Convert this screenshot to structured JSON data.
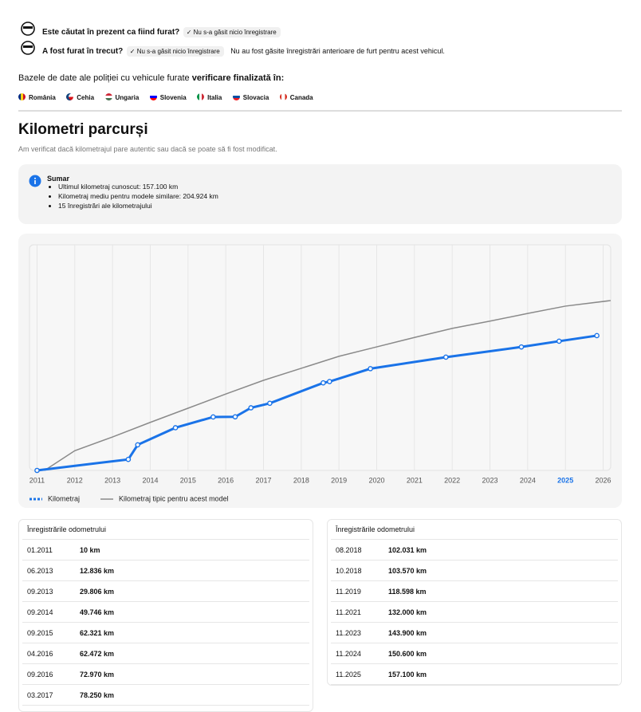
{
  "theft_checks": [
    {
      "question": "Este căutat în prezent ca fiind furat?",
      "badge": "Nu s-a găsit nicio înregistrare"
    },
    {
      "question": "A fost furat în trecut?",
      "badge": "Nu s-a găsit nicio înregistrare",
      "note": "Nu au fost găsite înregistrări anterioare de furt pentru acest vehicul."
    }
  ],
  "databases": {
    "text": "Bazele de date ale poliției cu vehicule furate",
    "bold": "verificare finalizată în:",
    "countries": [
      "România",
      "Cehia",
      "Ungaria",
      "Slovenia",
      "Italia",
      "Slovacia",
      "Canada"
    ]
  },
  "mileage": {
    "title": "Kilometri parcurși",
    "subtitle": "Am verificat dacă kilometrajul pare autentic sau dacă se poate să fi fost modificat.",
    "summary": {
      "title": "Sumar",
      "items": [
        "Ultimul kilometraj cunoscut: 157.100 km",
        "Kilometraj mediu pentru modele similare: 204.924 km",
        "15 înregistrări ale kilometrajului"
      ]
    }
  },
  "chart_data": {
    "type": "line",
    "xlim": [
      2010.8,
      2026.2
    ],
    "ylim": [
      0,
      263000
    ],
    "xticks": [
      2011,
      2012,
      2013,
      2014,
      2015,
      2016,
      2017,
      2018,
      2019,
      2020,
      2021,
      2022,
      2023,
      2024,
      2025,
      2026
    ],
    "highlight_xtick": 2025,
    "highlight_color": "#1a73e8",
    "grid": true,
    "legend": "bottom-left",
    "series": [
      {
        "name": "Kilometraj",
        "color": "#1a73e8",
        "markers": true,
        "x": [
          2011.0,
          2013.417,
          2013.667,
          2014.667,
          2015.667,
          2016.25,
          2016.667,
          2017.167,
          2018.583,
          2018.75,
          2019.833,
          2021.833,
          2023.833,
          2024.833,
          2025.833
        ],
        "values": [
          10,
          12836,
          29806,
          49746,
          62321,
          62472,
          72970,
          78250,
          102031,
          103570,
          118598,
          132000,
          143900,
          150600,
          157100
        ]
      },
      {
        "name": "Kilometraj tipic pentru acest model",
        "color": "#8a8a8a",
        "markers": false,
        "x": [
          2011.2,
          2012,
          2013,
          2014,
          2015,
          2016,
          2017,
          2018,
          2019,
          2020,
          2021,
          2022,
          2023,
          2024,
          2025,
          2026.2
        ],
        "values": [
          0,
          23000,
          39000,
          56000,
          72500,
          89000,
          105000,
          119000,
          133000,
          144000,
          155000,
          165500,
          174000,
          183000,
          191500,
          198000
        ]
      }
    ]
  },
  "records": {
    "tables": [
      {
        "title": "Înregistrările odometrului",
        "rows": [
          [
            "01.2011",
            "10 km"
          ],
          [
            "06.2013",
            "12.836 km"
          ],
          [
            "09.2013",
            "29.806 km"
          ],
          [
            "09.2014",
            "49.746 km"
          ],
          [
            "09.2015",
            "62.321 km"
          ],
          [
            "04.2016",
            "62.472 km"
          ],
          [
            "09.2016",
            "72.970 km"
          ],
          [
            "03.2017",
            "78.250 km"
          ]
        ]
      },
      {
        "title": "Înregistrările odometrului",
        "rows": [
          [
            "08.2018",
            "102.031 km"
          ],
          [
            "10.2018",
            "103.570 km"
          ],
          [
            "11.2019",
            "118.598 km"
          ],
          [
            "11.2021",
            "132.000 km"
          ],
          [
            "11.2023",
            "143.900 km"
          ],
          [
            "11.2024",
            "150.600 km"
          ],
          [
            "11.2025",
            "157.100 km"
          ]
        ]
      }
    ]
  }
}
